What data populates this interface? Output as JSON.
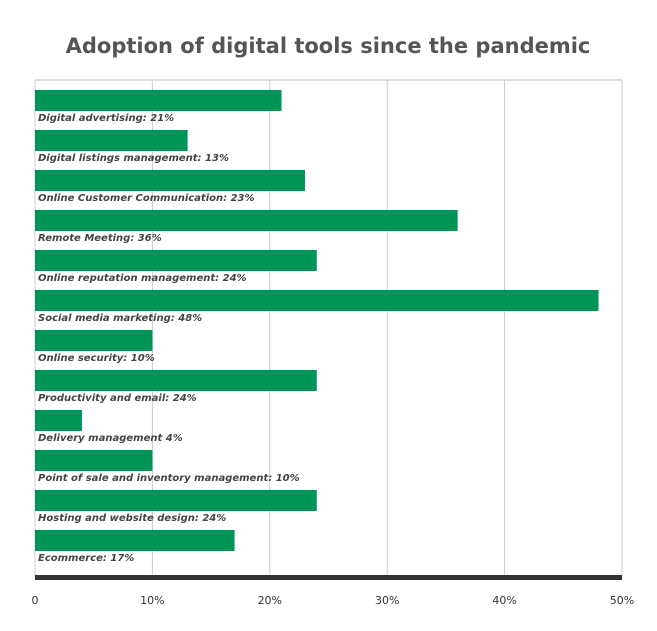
{
  "chart_data": {
    "type": "bar",
    "orientation": "horizontal",
    "title": "Adoption of digital tools since the pandemic",
    "values": [
      21,
      13,
      23,
      36,
      24,
      48,
      10,
      24,
      4,
      10,
      24,
      17
    ],
    "value_labels": [
      "Digital advertising:  21%",
      "Digital listings management:  13%",
      "Online Customer Communication:  23%",
      "Remote Meeting: 36%",
      "Online reputation management: 24%",
      "Social media marketing: 48%",
      "Online security: 10%",
      "Productivity and email: 24%",
      "Delivery management 4%",
      "Point of sale and inventory management: 10%",
      "Hosting and website design: 24%",
      "Ecommerce: 17%"
    ],
    "color": "#009556",
    "xlim": [
      0,
      50
    ],
    "xticks": [
      0,
      {
        "value": 10,
        "label": "10%"
      },
      {
        "value": 20,
        "label": "20%"
      },
      {
        "value": 30,
        "label": "30%"
      },
      {
        "value": 40,
        "label": "40%"
      },
      {
        "value": 50,
        "label": "50%"
      }
    ],
    "grid": true
  }
}
